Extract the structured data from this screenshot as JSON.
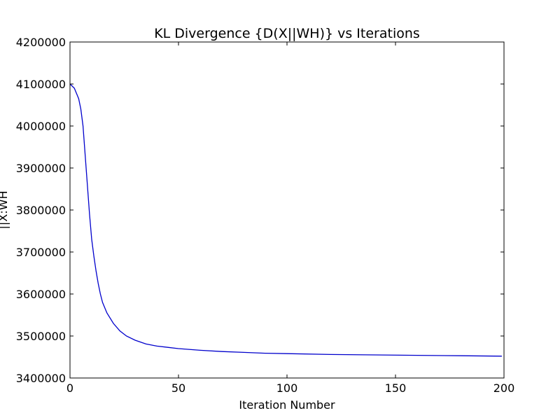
{
  "chart_data": {
    "type": "line",
    "title": "KL Divergence {D(X||WH)} vs Iterations",
    "xlabel": "Iteration Number",
    "ylabel": "||X:WH",
    "xlim": [
      0,
      200
    ],
    "ylim": [
      3400000,
      4200000
    ],
    "x_ticks": [
      0,
      50,
      100,
      150,
      200
    ],
    "y_ticks": [
      3400000,
      3500000,
      3600000,
      3700000,
      3800000,
      3900000,
      4000000,
      4100000,
      4200000
    ],
    "grid": false,
    "legend": "none",
    "series": [
      {
        "color": "#0000cc",
        "x": [
          0,
          2,
          4,
          5,
          6,
          7,
          8,
          9,
          10,
          11,
          12,
          13,
          14,
          15,
          17,
          20,
          23,
          26,
          30,
          35,
          40,
          45,
          50,
          60,
          70,
          80,
          90,
          100,
          120,
          140,
          160,
          180,
          199
        ],
        "y": [
          4100000,
          4090000,
          4065000,
          4040000,
          4000000,
          3930000,
          3860000,
          3790000,
          3730000,
          3690000,
          3655000,
          3625000,
          3600000,
          3580000,
          3555000,
          3530000,
          3512000,
          3500000,
          3490000,
          3481000,
          3476000,
          3473000,
          3470000,
          3466000,
          3463000,
          3461000,
          3459000,
          3458000,
          3456000,
          3455000,
          3454000,
          3453000,
          3452000
        ]
      }
    ]
  }
}
